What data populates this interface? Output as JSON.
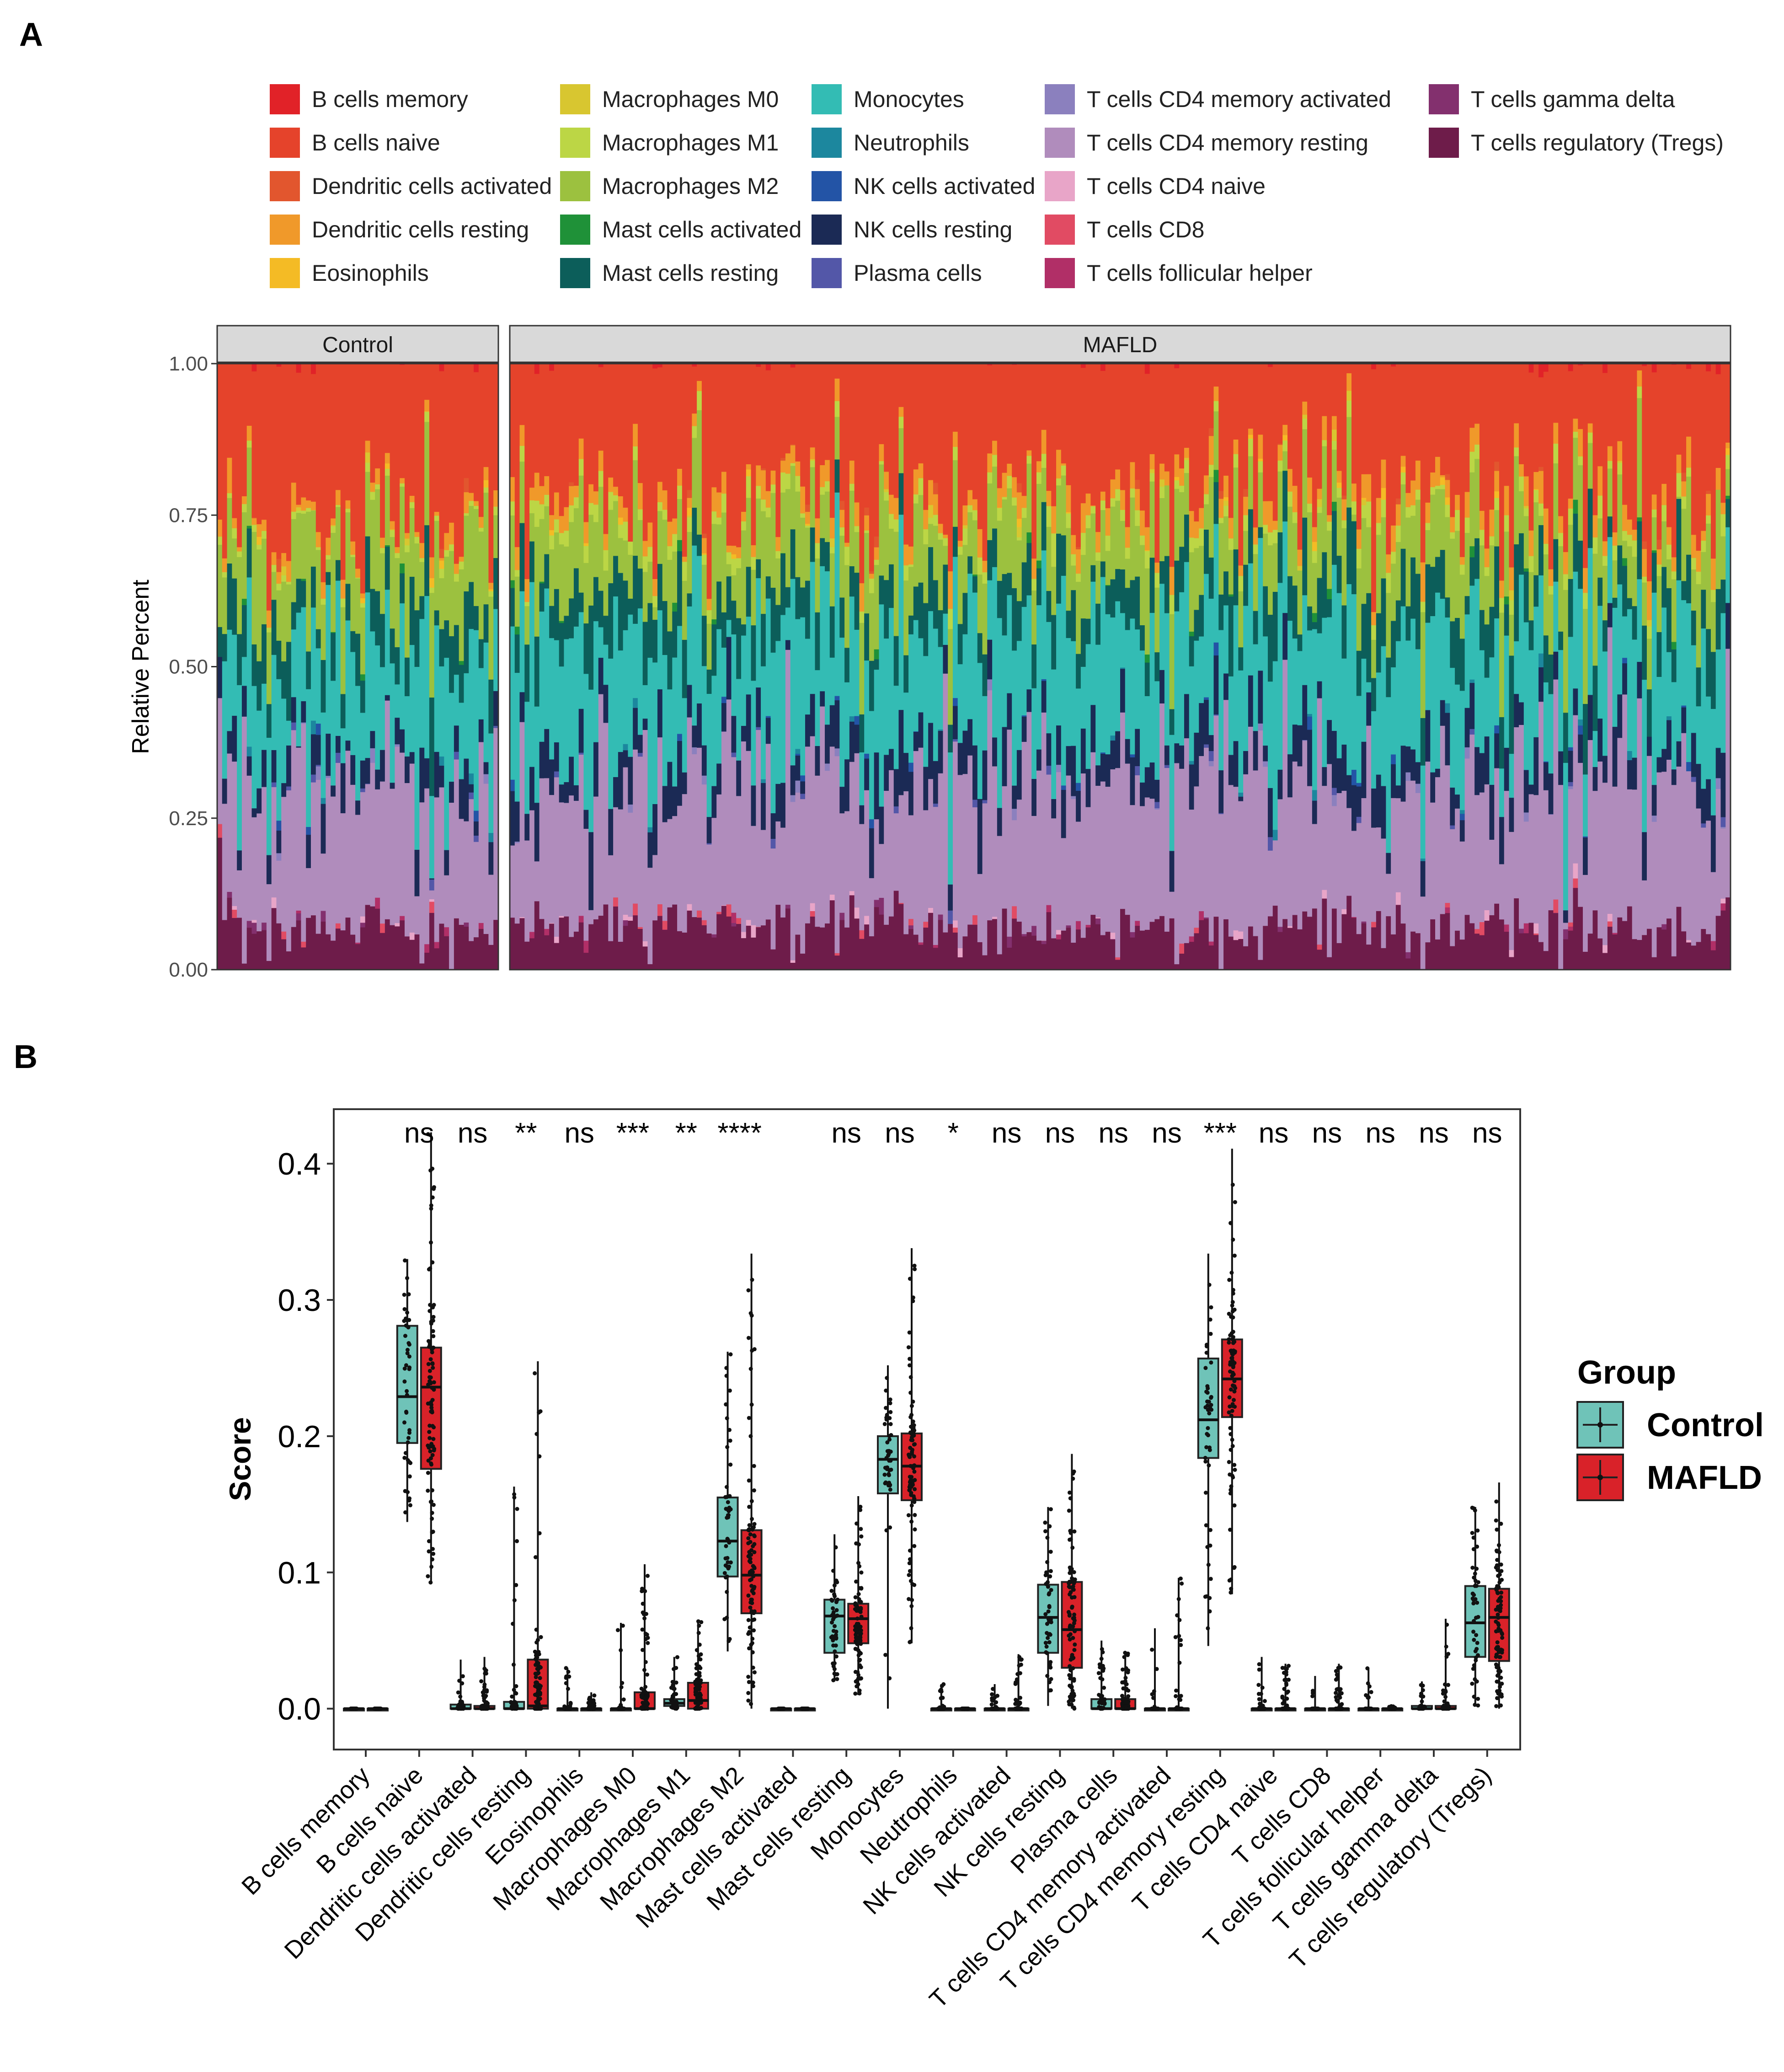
{
  "panel_a_label": "A",
  "panel_b_label": "B",
  "chart_data": [
    {
      "type": "stacked-bar",
      "panel": "A",
      "ylabel": "Relative Percent",
      "ylim": [
        0,
        1
      ],
      "yticks": [
        "0.00",
        "0.25",
        "0.50",
        "0.75",
        "1.00"
      ],
      "facets": [
        {
          "name": "Control",
          "n_samples": 57
        },
        {
          "name": "MAFLD",
          "n_samples": 248
        }
      ],
      "cell_types": [
        {
          "name": "B cells memory",
          "color": "#E12228"
        },
        {
          "name": "B cells naive",
          "color": "#E5432B"
        },
        {
          "name": "Dendritic cells activated",
          "color": "#E2562E"
        },
        {
          "name": "Dendritic cells resting",
          "color": "#F0992A"
        },
        {
          "name": "Eosinophils",
          "color": "#F4BB25"
        },
        {
          "name": "Macrophages M0",
          "color": "#D8C630"
        },
        {
          "name": "Macrophages M1",
          "color": "#BCD645"
        },
        {
          "name": "Macrophages M2",
          "color": "#9CC13F"
        },
        {
          "name": "Mast cells activated",
          "color": "#1F9138"
        },
        {
          "name": "Mast cells resting",
          "color": "#0C5E5A"
        },
        {
          "name": "Monocytes",
          "color": "#33BCB4"
        },
        {
          "name": "Neutrophils",
          "color": "#1C879E"
        },
        {
          "name": "NK cells activated",
          "color": "#2354A6"
        },
        {
          "name": "NK cells resting",
          "color": "#1B2A55"
        },
        {
          "name": "Plasma cells",
          "color": "#5357A8"
        },
        {
          "name": "T cells CD4 memory activated",
          "color": "#8B80BE"
        },
        {
          "name": "T cells CD4 memory resting",
          "color": "#B08CBC"
        },
        {
          "name": "T cells CD4 naive",
          "color": "#E8A5C8"
        },
        {
          "name": "T cells CD8",
          "color": "#E14B63"
        },
        {
          "name": "T cells follicular helper",
          "color": "#B12F67"
        },
        {
          "name": "T cells gamma delta",
          "color": "#83306E"
        },
        {
          "name": "T cells regulatory (Tregs)",
          "color": "#6E1C4A"
        }
      ],
      "mean_fractions": {
        "Control": {
          "T cells regulatory (Tregs)": 0.07,
          "T cells CD4 memory resting": 0.22,
          "NK cells resting": 0.05,
          "Monocytes": 0.18,
          "Mast cells resting": 0.07,
          "Macrophages M2": 0.12,
          "Macrophages M1": 0.01,
          "Dendritic cells resting": 0.02,
          "B cells naive": 0.23
        },
        "MAFLD": {
          "T cells regulatory (Tregs)": 0.07,
          "T cells CD4 memory resting": 0.24,
          "NK cells resting": 0.06,
          "Monocytes": 0.18,
          "Mast cells resting": 0.07,
          "Macrophages M2": 0.1,
          "Macrophages M1": 0.02,
          "Dendritic cells resting": 0.03,
          "B cells naive": 0.22
        }
      }
    },
    {
      "type": "boxplot",
      "panel": "B",
      "ylabel": "Score",
      "ylim": [
        -0.03,
        0.44
      ],
      "yticks": [
        "0.0",
        "0.1",
        "0.2",
        "0.3",
        "0.4"
      ],
      "legend_title": "Group",
      "groups": [
        {
          "name": "Control",
          "color": "#6FC3B8"
        },
        {
          "name": "MAFLD",
          "color": "#D92229"
        }
      ],
      "categories": [
        {
          "name": "B cells memory",
          "sig": "",
          "control": [
            0,
            0,
            0,
            0,
            0
          ],
          "mafld": [
            0,
            0,
            0,
            0,
            0
          ]
        },
        {
          "name": "B cells naive",
          "sig": "ns",
          "control": [
            0.137,
            0.195,
            0.229,
            0.281,
            0.33
          ],
          "mafld": [
            0.092,
            0.176,
            0.236,
            0.265,
            0.423
          ]
        },
        {
          "name": "Dendritic cells activated",
          "sig": "ns",
          "control": [
            0,
            0,
            0,
            0.003,
            0.036
          ],
          "mafld": [
            0,
            0,
            0,
            0.002,
            0.038
          ]
        },
        {
          "name": "Dendritic cells resting",
          "sig": "**",
          "control": [
            0,
            0,
            0,
            0.005,
            0.163
          ],
          "mafld": [
            0,
            0,
            0.002,
            0.036,
            0.255
          ]
        },
        {
          "name": "Eosinophils",
          "sig": "ns",
          "control": [
            0,
            0,
            0,
            0,
            0.03
          ],
          "mafld": [
            0,
            0,
            0,
            0,
            0.012
          ]
        },
        {
          "name": "Macrophages M0",
          "sig": "***",
          "control": [
            0,
            0,
            0,
            0,
            0.063
          ],
          "mafld": [
            0,
            0,
            0,
            0.012,
            0.106
          ]
        },
        {
          "name": "Macrophages M1",
          "sig": "**",
          "control": [
            0,
            0.002,
            0.004,
            0.007,
            0.038
          ],
          "mafld": [
            0,
            0,
            0.006,
            0.019,
            0.065
          ]
        },
        {
          "name": "Macrophages M2",
          "sig": "****",
          "control": [
            0.042,
            0.097,
            0.123,
            0.155,
            0.262
          ],
          "mafld": [
            0,
            0.07,
            0.098,
            0.131,
            0.334
          ]
        },
        {
          "name": "Mast cells activated",
          "sig": "",
          "control": [
            0,
            0,
            0,
            0,
            0
          ],
          "mafld": [
            0,
            0,
            0,
            0,
            0
          ]
        },
        {
          "name": "Mast cells resting",
          "sig": "ns",
          "control": [
            0.02,
            0.041,
            0.068,
            0.08,
            0.128
          ],
          "mafld": [
            0.01,
            0.048,
            0.066,
            0.077,
            0.156
          ]
        },
        {
          "name": "Monocytes",
          "sig": "ns",
          "control": [
            0,
            0.158,
            0.183,
            0.2,
            0.252
          ],
          "mafld": [
            0.048,
            0.153,
            0.178,
            0.202,
            0.338
          ]
        },
        {
          "name": "Neutrophils",
          "sig": "*",
          "control": [
            0,
            0,
            0,
            0,
            0.018
          ],
          "mafld": [
            0,
            0,
            0,
            0,
            0
          ]
        },
        {
          "name": "NK cells activated",
          "sig": "ns",
          "control": [
            0,
            0,
            0,
            0,
            0.018
          ],
          "mafld": [
            0,
            0,
            0,
            0,
            0.04
          ]
        },
        {
          "name": "NK cells resting",
          "sig": "ns",
          "control": [
            0.002,
            0.041,
            0.067,
            0.091,
            0.148
          ],
          "mafld": [
            0,
            0.03,
            0.058,
            0.093,
            0.187
          ]
        },
        {
          "name": "Plasma cells",
          "sig": "ns",
          "control": [
            0,
            0,
            0,
            0.007,
            0.05
          ],
          "mafld": [
            0,
            0,
            0,
            0.007,
            0.042
          ]
        },
        {
          "name": "T cells CD4 memory activated",
          "sig": "ns",
          "control": [
            0,
            0,
            0,
            0,
            0.059
          ],
          "mafld": [
            0,
            0,
            0,
            0,
            0.096
          ]
        },
        {
          "name": "T cells CD4 memory resting",
          "sig": "***",
          "control": [
            0.046,
            0.184,
            0.212,
            0.257,
            0.334
          ],
          "mafld": [
            0.084,
            0.214,
            0.242,
            0.271,
            0.411
          ]
        },
        {
          "name": "T cells CD4 naive",
          "sig": "ns",
          "control": [
            0,
            0,
            0,
            0,
            0.038
          ],
          "mafld": [
            0,
            0,
            0,
            0,
            0.033
          ]
        },
        {
          "name": "T cells CD8",
          "sig": "ns",
          "control": [
            0,
            0,
            0,
            0,
            0.024
          ],
          "mafld": [
            0,
            0,
            0,
            0,
            0.033
          ]
        },
        {
          "name": "T cells follicular helper",
          "sig": "ns",
          "control": [
            0,
            0,
            0,
            0,
            0.03
          ],
          "mafld": [
            0,
            0,
            0,
            0,
            0.002
          ]
        },
        {
          "name": "T cells gamma delta",
          "sig": "ns",
          "control": [
            0,
            0,
            0,
            0.002,
            0.02
          ],
          "mafld": [
            0,
            0,
            0,
            0.002,
            0.066
          ]
        },
        {
          "name": "T cells regulatory (Tregs)",
          "sig": "ns",
          "control": [
            0.002,
            0.038,
            0.063,
            0.09,
            0.148
          ],
          "mafld": [
            0,
            0.035,
            0.067,
            0.088,
            0.166
          ]
        }
      ]
    }
  ]
}
